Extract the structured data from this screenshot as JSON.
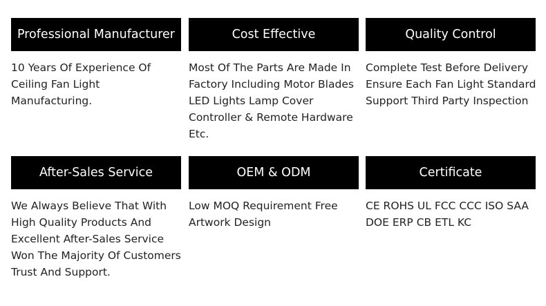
{
  "cards": [
    {
      "title": "Professional Manufacturer",
      "lines": [
        "10 Years Of Experience Of",
        "Ceiling Fan Light",
        "Manufacturing."
      ]
    },
    {
      "title": "Cost Effective",
      "lines": [
        "Most Of The Parts Are Made In",
        "Factory Including Motor Blades",
        "LED Lights Lamp Cover",
        "Controller & Remote Hardware",
        "Etc."
      ]
    },
    {
      "title": "Quality Control",
      "lines": [
        "Complete Test Before Delivery",
        "Ensure Each Fan Light Standard",
        "Support Third Party Inspection"
      ]
    },
    {
      "title": "After-Sales Service",
      "lines": [
        "We Always Believe That With",
        "High Quality Products And",
        "Excellent After-Sales Service",
        "Won The Majority Of Customers",
        "Trust And Support."
      ]
    },
    {
      "title": "OEM & ODM",
      "lines": [
        "Low MOQ Requirement Free",
        "Artwork Design"
      ]
    },
    {
      "title": "Certificate",
      "lines": [
        "CE ROHS UL FCC CCC ISO SAA",
        "DOE ERP CB ETL KC"
      ]
    }
  ]
}
